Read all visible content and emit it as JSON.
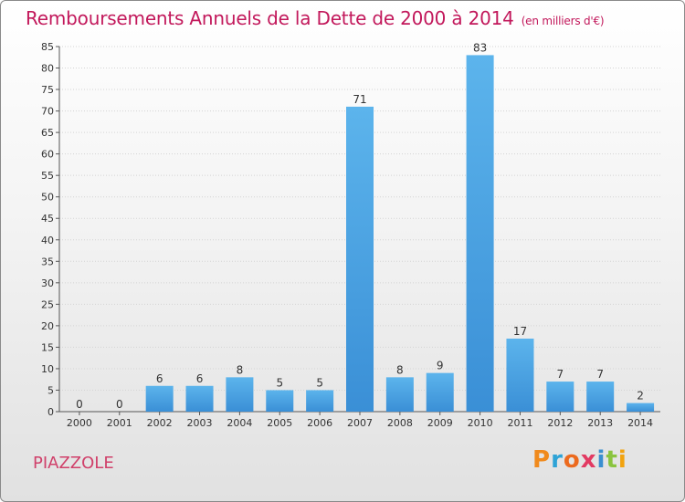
{
  "header": {
    "title": "Remboursements Annuels de la Dette de 2000 à 2014",
    "unit": "(en milliers d'€)"
  },
  "footer": {
    "town": "PIAZZOLE",
    "logo_letters": [
      "P",
      "r",
      "o",
      "x",
      "i",
      "t",
      "i"
    ],
    "logo_colors": [
      "#f08a1c",
      "#2ea3d6",
      "#ec6a1e",
      "#e23a62",
      "#3a8fd0",
      "#8ac43f",
      "#f2a30f"
    ]
  },
  "chart_data": {
    "type": "bar",
    "title": "Remboursements Annuels de la Dette de 2000 à 2014",
    "subtitle": "(en milliers d'€)",
    "categories": [
      "2000",
      "2001",
      "2002",
      "2003",
      "2004",
      "2005",
      "2006",
      "2007",
      "2008",
      "2009",
      "2010",
      "2011",
      "2012",
      "2013",
      "2014"
    ],
    "values": [
      0,
      0,
      6,
      6,
      8,
      5,
      5,
      71,
      8,
      9,
      83,
      17,
      7,
      7,
      2
    ],
    "ylim": [
      0,
      85
    ],
    "yticks": [
      0,
      5,
      10,
      15,
      20,
      25,
      30,
      35,
      40,
      45,
      50,
      55,
      60,
      65,
      70,
      75,
      80,
      85
    ],
    "grid": true,
    "bar_color": "#3a8fd6",
    "bar_color_light": "#5cb4ec"
  }
}
